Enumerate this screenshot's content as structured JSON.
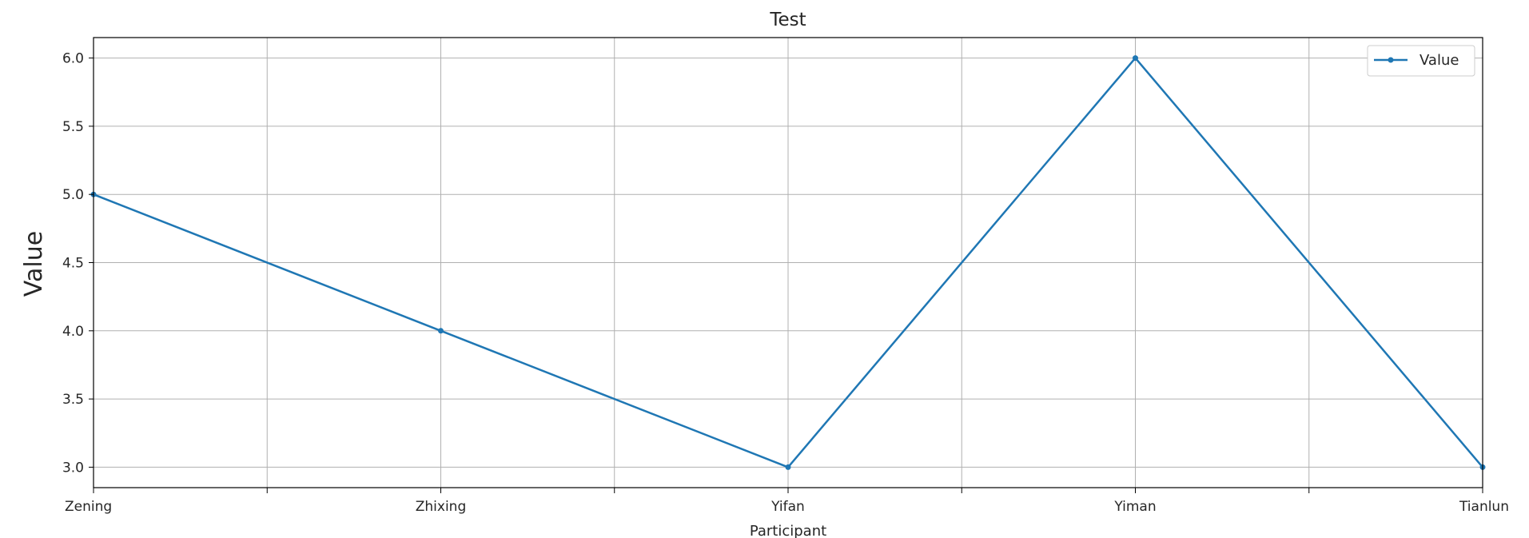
{
  "chart_data": {
    "type": "line",
    "title": "Test",
    "xlabel": "Participant",
    "ylabel": "Value",
    "categories": [
      "Zening",
      "Zhixing",
      "Yifan",
      "Yiman",
      "Tianlun"
    ],
    "series": [
      {
        "name": "Value",
        "values": [
          5,
          4,
          3,
          6,
          3
        ],
        "color": "#1f77b4"
      }
    ],
    "ylim": [
      2.85,
      6.15
    ],
    "yticks": [
      3.0,
      3.5,
      4.0,
      4.5,
      5.0,
      5.5,
      6.0
    ],
    "ytick_labels": [
      "3.0",
      "3.5",
      "4.0",
      "4.5",
      "5.0",
      "5.5",
      "6.0"
    ],
    "grid": true,
    "legend_position": "top-right"
  }
}
